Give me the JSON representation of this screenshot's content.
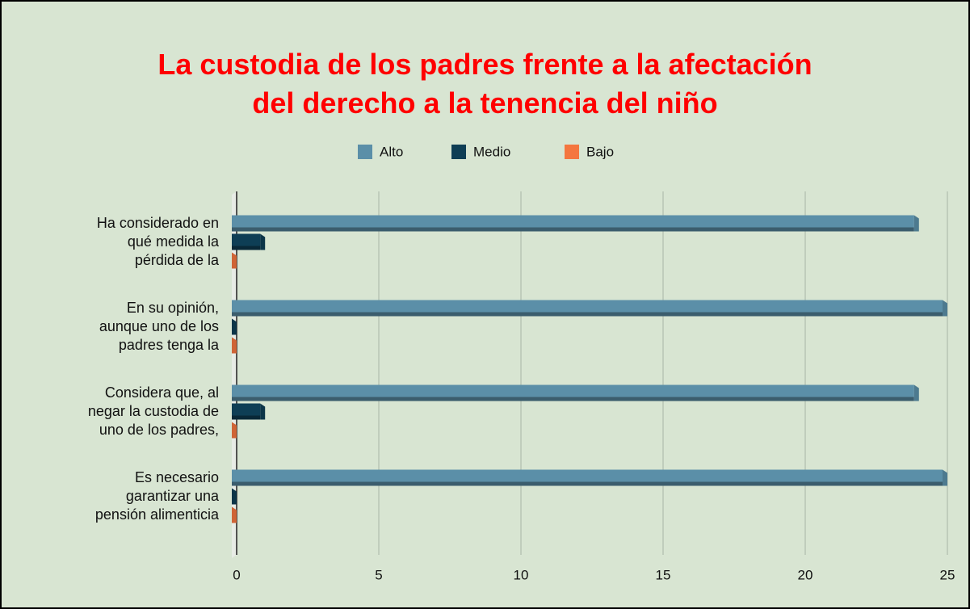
{
  "chart_data": {
    "type": "bar",
    "orientation": "horizontal",
    "title": "La custodia de los padres frente a la afectación\ndel derecho a la tenencia del niño",
    "categories": [
      "Ha considerado en\nqué medida la\npérdida de la",
      "En su opinión,\naunque uno de los\npadres tenga la",
      "Considera que, al\nnegar la custodia de\nuno de los padres,",
      "Es necesario\ngarantizar una\npensión alimenticia"
    ],
    "series": [
      {
        "name": "Alto",
        "color": "#5b8fa8",
        "values": [
          24,
          25,
          24,
          25
        ]
      },
      {
        "name": "Medio",
        "color": "#0e3e55",
        "values": [
          1,
          0,
          1,
          0
        ]
      },
      {
        "name": "Bajo",
        "color": "#f4763f",
        "values": [
          0,
          0,
          0,
          0
        ]
      }
    ],
    "xlim": [
      0,
      25
    ],
    "xticks": [
      0,
      5,
      10,
      15,
      20,
      25
    ],
    "grid": true,
    "legend": "top"
  }
}
